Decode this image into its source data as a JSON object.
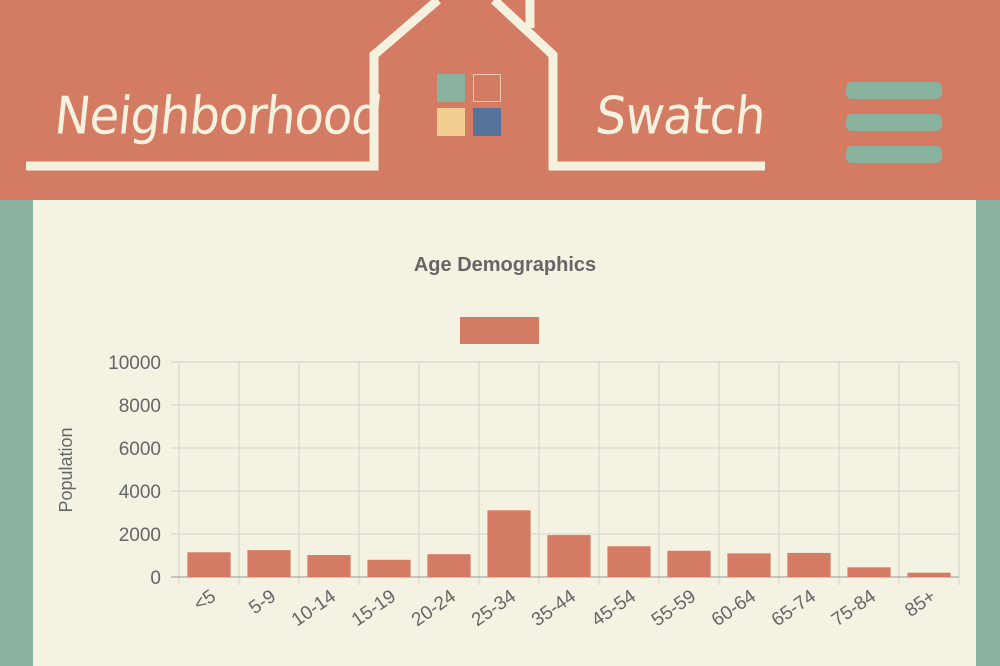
{
  "header": {
    "brand_left": "Neighborhood",
    "brand_right": "Swatch",
    "swatches": [
      "#8ab39f",
      "#d47b63",
      "#f1cd8f",
      "#56739c"
    ],
    "menu_icon": "hamburger-icon"
  },
  "colors": {
    "header_bg": "#d47b63",
    "side_bg": "#8ab39f",
    "panel_bg": "#f4f2e2",
    "bar": "#d47b63",
    "outline": "#f5f1df"
  },
  "chart_data": {
    "type": "bar",
    "title": "Age Demographics",
    "xlabel": "",
    "ylabel": "Population",
    "legend": {
      "position": "top",
      "entries": [
        ""
      ]
    },
    "categories": [
      "<5",
      "5-9",
      "10-14",
      "15-19",
      "20-24",
      "25-34",
      "35-44",
      "45-54",
      "55-59",
      "60-64",
      "65-74",
      "75-84",
      "85+"
    ],
    "values": [
      1150,
      1250,
      1020,
      800,
      1060,
      3100,
      1950,
      1430,
      1220,
      1100,
      1120,
      450,
      200
    ],
    "ylim": [
      0,
      10000
    ],
    "yticks": [
      0,
      2000,
      4000,
      6000,
      8000,
      10000
    ],
    "grid": true,
    "color": "#d47b63"
  }
}
